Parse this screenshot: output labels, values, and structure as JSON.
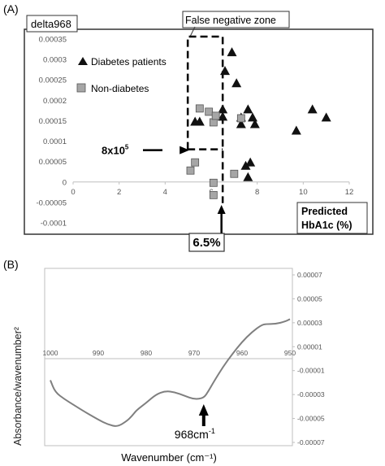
{
  "panels": [
    {
      "chart_data": {
        "type": "scatter",
        "panel_label": "(A)",
        "title": "",
        "xlabel": "Predicted HbA1c (%)",
        "xlabel_lines": [
          "Predicted",
          "HbA1c (%)"
        ],
        "ylabel": "delta968",
        "xlim": [
          0,
          12
        ],
        "ylim": [
          -0.0001,
          0.00035
        ],
        "x_ticks": [
          0,
          2,
          4,
          6,
          8,
          10,
          12
        ],
        "x_tick_labels": [
          "0",
          "2",
          "4",
          "6",
          "8",
          "10",
          "12"
        ],
        "y_ticks": [
          -0.0001,
          -5e-05,
          0,
          5e-05,
          0.0001,
          0.00015,
          0.0002,
          0.00025,
          0.0003,
          0.00035
        ],
        "y_tick_labels": [
          "-0.0001",
          "-0.00005",
          "0",
          "0.00005",
          "0.0001",
          "0.00015",
          "0.0002",
          "0.00025",
          "0.0003",
          "0.00035"
        ],
        "grid": false,
        "legend_position": "upper-left",
        "series": [
          {
            "name": "Diabetes patients",
            "marker": "triangle",
            "color": "#111111",
            "points": [
              {
                "x": 5.3,
                "y": 0.000148
              },
              {
                "x": 5.5,
                "y": 0.000148
              },
              {
                "x": 6.5,
                "y": 0.000178
              },
              {
                "x": 6.6,
                "y": 0.000272
              },
              {
                "x": 6.5,
                "y": 0.00016
              },
              {
                "x": 6.9,
                "y": 0.000318
              },
              {
                "x": 7.1,
                "y": 0.000242
              },
              {
                "x": 7.3,
                "y": 0.000158
              },
              {
                "x": 7.3,
                "y": 0.000142
              },
              {
                "x": 7.6,
                "y": 0.000178
              },
              {
                "x": 7.8,
                "y": 0.000158
              },
              {
                "x": 7.9,
                "y": 0.000142
              },
              {
                "x": 7.5,
                "y": 4e-05
              },
              {
                "x": 7.7,
                "y": 4.8e-05
              },
              {
                "x": 7.6,
                "y": 1.2e-05
              },
              {
                "x": 9.7,
                "y": 0.000126
              },
              {
                "x": 10.4,
                "y": 0.000178
              },
              {
                "x": 11.0,
                "y": 0.000158
              }
            ]
          },
          {
            "name": "Non-diabetes",
            "marker": "square",
            "color": "#a6a6a6",
            "points": [
              {
                "x": 5.1,
                "y": 2.8e-05
              },
              {
                "x": 5.3,
                "y": 4.8e-05
              },
              {
                "x": 5.5,
                "y": 0.00018
              },
              {
                "x": 5.9,
                "y": 0.000172
              },
              {
                "x": 6.1,
                "y": 0.000146
              },
              {
                "x": 6.2,
                "y": 0.000162
              },
              {
                "x": 6.1,
                "y": -2e-06
              },
              {
                "x": 6.1,
                "y": -3.2e-05
              },
              {
                "x": 7.0,
                "y": 2e-05
              },
              {
                "x": 7.3,
                "y": 0.000156
              }
            ]
          }
        ],
        "annotations": {
          "zone_label": "False negative zone",
          "threshold_y_label": "8x10",
          "threshold_y_sup": "5",
          "threshold_x_label": "6.5%",
          "threshold_x": 6.5,
          "threshold_y": 8e-05
        }
      }
    },
    {
      "chart_data": {
        "type": "line",
        "panel_label": "(B)",
        "title": "",
        "xlabel": "Wavenumber (cm⁻¹)",
        "ylabel": "Absorbance/wavenumber²",
        "xlim": [
          1000,
          950
        ],
        "x_reversed": true,
        "ylim": [
          -7e-05,
          7e-05
        ],
        "x_ticks": [
          1000,
          990,
          980,
          970,
          960,
          950
        ],
        "x_tick_labels": [
          "1000",
          "990",
          "980",
          "970",
          "960",
          "950"
        ],
        "y_ticks": [
          7e-05,
          5e-05,
          3e-05,
          1e-05,
          -1e-05,
          -3e-05,
          -5e-05,
          -7e-05
        ],
        "y_tick_labels": [
          "0.00007",
          "0.00005",
          "0.00003",
          "0.00001",
          "-0.00001",
          "-0.00003",
          "-0.00005",
          "-0.00007"
        ],
        "grid": false,
        "series": [
          {
            "color": "#7f7f7f",
            "x": [
              1000,
              999,
              997,
              995,
              993,
              990,
              988,
              986,
              984,
              983,
              982,
              980,
              978,
              976,
              974,
              972,
              970,
              968,
              967,
              966,
              964,
              962,
              960,
              958,
              956,
              955,
              953,
              951,
              950
            ],
            "y": [
              -1.8e-05,
              -2.8e-05,
              -3.4e-05,
              -3.9e-05,
              -4.4e-05,
              -5.1e-05,
              -5.5e-05,
              -5.7e-05,
              -5.2e-05,
              -4.8e-05,
              -4.3e-05,
              -3.7e-05,
              -3e-05,
              -2.7e-05,
              -2.8e-05,
              -3.1e-05,
              -3.4e-05,
              -3.3e-05,
              -2.7e-05,
              -2e-05,
              -7e-06,
              4e-06,
              1.4e-05,
              2.2e-05,
              2.8e-05,
              2.9e-05,
              2.9e-05,
              3.1e-05,
              3.3e-05
            ]
          }
        ],
        "annotations": {
          "arrow_label": "968cm",
          "arrow_label_sup": "-1",
          "arrow_x": 968
        }
      }
    }
  ]
}
